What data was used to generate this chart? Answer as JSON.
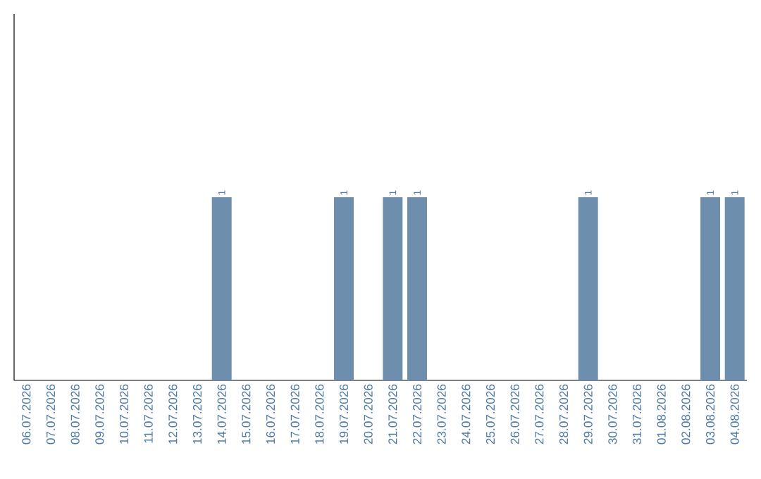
{
  "chart_data": {
    "type": "bar",
    "categories": [
      "06.07.2026",
      "07.07.2026",
      "08.07.2026",
      "09.07.2026",
      "10.07.2026",
      "11.07.2026",
      "12.07.2026",
      "13.07.2026",
      "14.07.2026",
      "15.07.2026",
      "16.07.2026",
      "17.07.2026",
      "18.07.2026",
      "19.07.2026",
      "20.07.2026",
      "21.07.2026",
      "22.07.2026",
      "23.07.2026",
      "24.07.2026",
      "25.07.2026",
      "26.07.2026",
      "27.07.2026",
      "28.07.2026",
      "29.07.2026",
      "30.07.2026",
      "31.07.2026",
      "01.08.2026",
      "02.08.2026",
      "03.08.2026",
      "04.08.2026"
    ],
    "values": [
      0,
      0,
      0,
      0,
      0,
      0,
      0,
      0,
      1,
      0,
      0,
      0,
      0,
      1,
      0,
      1,
      1,
      0,
      0,
      0,
      0,
      0,
      0,
      1,
      0,
      0,
      0,
      0,
      1,
      1
    ],
    "value_labels": [
      null,
      null,
      null,
      null,
      null,
      null,
      null,
      null,
      "1",
      null,
      null,
      null,
      null,
      "1",
      null,
      "1",
      "1",
      null,
      null,
      null,
      null,
      null,
      null,
      "1",
      null,
      null,
      null,
      null,
      "1",
      "1"
    ],
    "color": "#6d8fad",
    "ylim": [
      0,
      2
    ],
    "tick_labels": "x"
  }
}
